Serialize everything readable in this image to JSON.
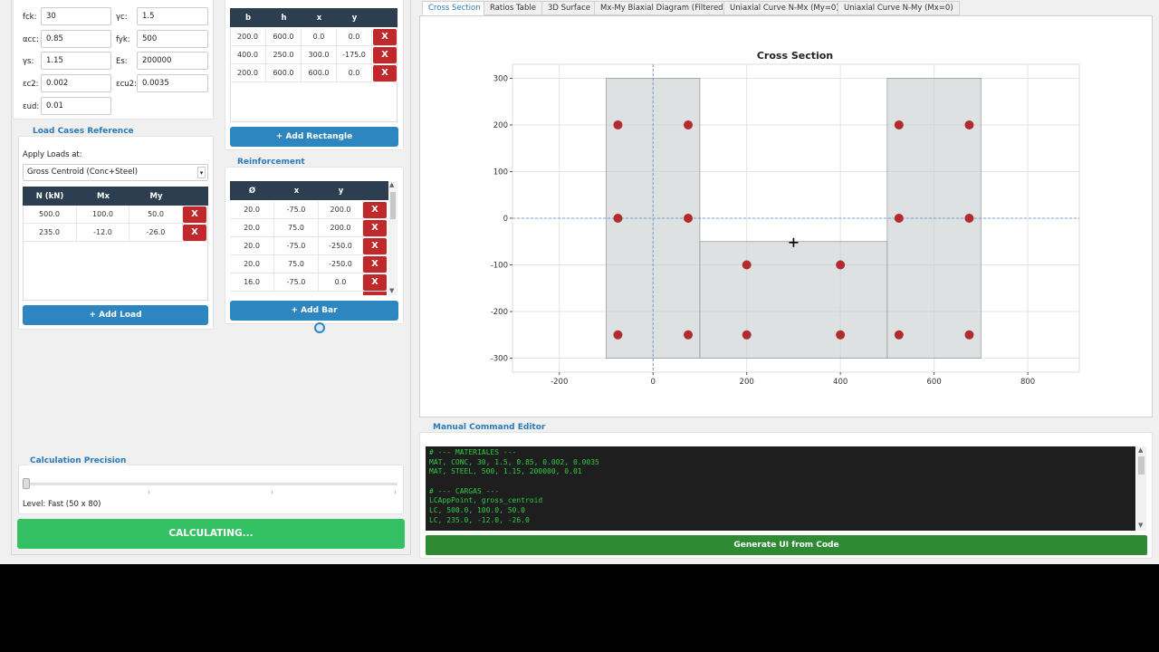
{
  "materials": {
    "fck": {
      "label": "fck:",
      "value": "30"
    },
    "gc": {
      "label": "γc:",
      "value": "1.5"
    },
    "acc": {
      "label": "αcc:",
      "value": "0.85"
    },
    "fyk": {
      "label": "fyk:",
      "value": "500"
    },
    "gs": {
      "label": "γs:",
      "value": "1.15"
    },
    "es": {
      "label": "Es:",
      "value": "200000"
    },
    "ec2": {
      "label": "εc2:",
      "value": "0.002"
    },
    "ecu2": {
      "label": "εcu2:",
      "value": "0.0035"
    },
    "eud": {
      "label": "εud:",
      "value": "0.01"
    }
  },
  "loads": {
    "title": "Load Cases  Reference",
    "apply_label": "Apply Loads at:",
    "apply_value": "Gross Centroid (Conc+Steel)",
    "headers": [
      "N (kN)",
      "Mx",
      "My"
    ],
    "rows": [
      [
        "500.0",
        "100.0",
        "50.0"
      ],
      [
        "235.0",
        "-12.0",
        "-26.0"
      ]
    ],
    "add_label": "+ Add Load"
  },
  "rectangles": {
    "headers": [
      "b",
      "h",
      "x",
      "y"
    ],
    "rows": [
      [
        "200.0",
        "600.0",
        "0.0",
        "0.0"
      ],
      [
        "400.0",
        "250.0",
        "300.0",
        "-175.0"
      ],
      [
        "200.0",
        "600.0",
        "600.0",
        "0.0"
      ]
    ],
    "add_label": "+ Add Rectangle"
  },
  "reinforcement": {
    "title": "Reinforcement",
    "headers": [
      "Ø",
      "x",
      "y"
    ],
    "rows": [
      [
        "20.0",
        "-75.0",
        "200.0"
      ],
      [
        "20.0",
        "75.0",
        "200.0"
      ],
      [
        "20.0",
        "-75.0",
        "-250.0"
      ],
      [
        "20.0",
        "75.0",
        "-250.0"
      ],
      [
        "16.0",
        "-75.0",
        "0.0"
      ]
    ],
    "add_label": "+ Add Bar"
  },
  "delete_label": "X",
  "precision": {
    "title": "Calculation Precision",
    "level": 0.0,
    "level_text": "Level: Fast (50 x 80)"
  },
  "calc_button": "CALCULATING...",
  "tabs": [
    "Cross Section",
    "Ratios Table",
    "3D Surface",
    "Mx-My Biaxial Diagram (Filtered)",
    "Uniaxial Curve N-Mx (My=0)",
    "Uniaxial Curve N-My (Mx=0)"
  ],
  "active_tab": 0,
  "editor": {
    "title": "Manual Command Editor",
    "lines": [
      "# --- MATERIALES ---",
      "MAT, CONC, 30, 1.5, 0.85, 0.002, 0.0035",
      "MAT, STEEL, 500, 1.15, 200000, 0.01",
      "",
      "# --- CARGAS ---",
      "LCAppPoint, gross_centroid",
      "LC, 500.0, 100.0, 50.0",
      "LC, 235.0, -12.0, -26.0"
    ],
    "generate_label": "Generate UI from Code"
  },
  "colors": {
    "accent": "#2b7ab9",
    "header": "#2c3e50",
    "delete": "#c0292b",
    "button": "#2e86c1",
    "calc": "#33c163",
    "generate": "#2e8b34",
    "bar": "#b22b2e"
  },
  "chart_data": {
    "type": "scatter",
    "title": "Cross Section",
    "xlim": [
      -300,
      910
    ],
    "ylim": [
      -330,
      330
    ],
    "xticks": [
      -200,
      0,
      200,
      400,
      600,
      800
    ],
    "yticks": [
      300,
      200,
      100,
      0,
      -100,
      -200,
      -300
    ],
    "grid": true,
    "rectangles": [
      {
        "b": 200,
        "h": 600,
        "x": 0,
        "y": 0
      },
      {
        "b": 400,
        "h": 250,
        "x": 300,
        "y": -175
      },
      {
        "b": 200,
        "h": 600,
        "x": 600,
        "y": 0
      }
    ],
    "bars": [
      {
        "x": -75,
        "y": 200
      },
      {
        "x": 75,
        "y": 200
      },
      {
        "x": -75,
        "y": 0
      },
      {
        "x": 75,
        "y": 0
      },
      {
        "x": -75,
        "y": -250
      },
      {
        "x": 75,
        "y": -250
      },
      {
        "x": 200,
        "y": -100
      },
      {
        "x": 400,
        "y": -100
      },
      {
        "x": 200,
        "y": -250
      },
      {
        "x": 400,
        "y": -250
      },
      {
        "x": 525,
        "y": 200
      },
      {
        "x": 675,
        "y": 200
      },
      {
        "x": 525,
        "y": 0
      },
      {
        "x": 675,
        "y": 0
      },
      {
        "x": 525,
        "y": -250
      },
      {
        "x": 675,
        "y": -250
      }
    ],
    "centroid": {
      "x": 300,
      "y": -52
    }
  }
}
